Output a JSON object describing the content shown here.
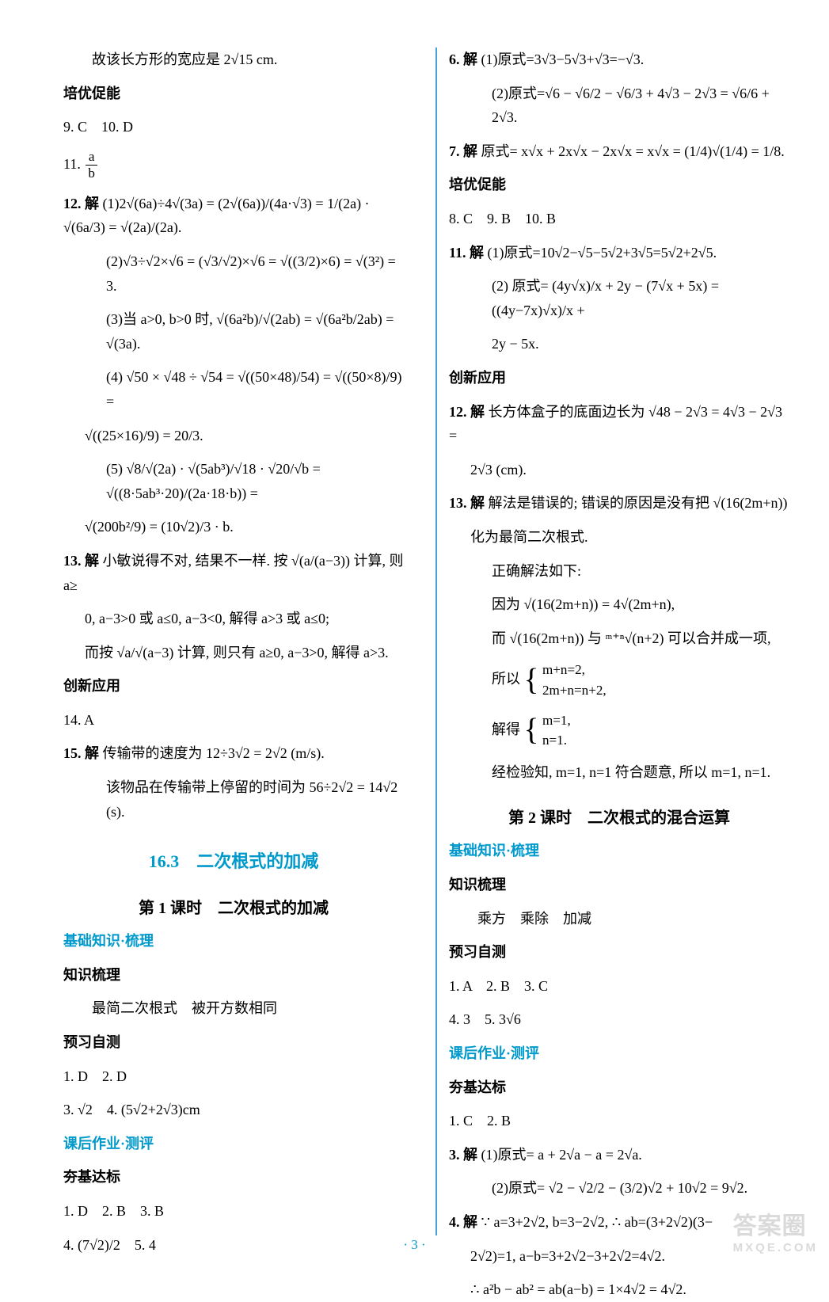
{
  "left": {
    "l0": "故该长方形的宽应是 2√15 cm.",
    "peiyou": "培优促能",
    "l9": "9. C　10. D",
    "l11_label": "11. ",
    "l11_frac_num": "a",
    "l11_frac_den": "b",
    "l12_label": "12. 解",
    "l12_1": "(1)2√(6a)÷4√(3a) = (2√(6a))/(4a·√3) = 1/(2a) · √(6a/3) = √(2a)/(2a).",
    "l12_2": "(2)√3÷√2×√6 = (√3/√2)×√6 = √((3/2)×6) = √(3²) = 3.",
    "l12_3": "(3)当 a>0, b>0 时, √(6a²b)/√(2ab) = √(6a²b/2ab) = √(3a).",
    "l12_4": "(4) √50 × √48 ÷ √54 = √((50×48)/54) = √((50×8)/9) =",
    "l12_4b": "√((25×16)/9) = 20/3.",
    "l12_5": "(5) √8/√(2a) · √(5ab³)/√18 · √20/√b = √((8·5ab³·20)/(2a·18·b)) =",
    "l12_5b": "√(200b²/9) = (10√2)/3 · b.",
    "l13_label": "13. 解",
    "l13_1": "小敏说得不对, 结果不一样. 按 √(a/(a−3)) 计算, 则 a≥",
    "l13_2": "0, a−3>0 或 a≤0, a−3<0, 解得 a>3 或 a≤0;",
    "l13_3": "而按 √a/√(a−3) 计算, 则只有 a≥0, a−3>0, 解得 a>3.",
    "chuangxin": "创新应用",
    "l14": "14. A",
    "l15_label": "15. 解",
    "l15_1": "传输带的速度为 12÷3√2 = 2√2 (m/s).",
    "l15_2": "该物品在传输带上停留的时间为 56÷2√2 = 14√2 (s).",
    "section_163": "16.3　二次根式的加减",
    "lesson1": "第 1 课时　二次根式的加减",
    "jichu": "基础知识·梳理",
    "zhishi": "知识梳理",
    "zhishi_text": "最简二次根式　被开方数相同",
    "yuxi": "预习自测",
    "y1": "1. D　2. D",
    "y3": "3. √2　4. (5√2+2√3)cm",
    "kehou": "课后作业·测评",
    "hangji": "夯基达标",
    "h1": "1. D　2. B　3. B",
    "h4": "4. (7√2)/2　5. 4"
  },
  "right": {
    "l6_label": "6. 解",
    "l6_1": "(1)原式=3√3−5√3+√3=−√3.",
    "l6_2": "(2)原式=√6 − √6/2 − √6/3 + 4√3 − 2√3 = √6/6 + 2√3.",
    "l7_label": "7. 解",
    "l7_1": "原式= x√x + 2x√x − 2x√x = x√x = (1/4)√(1/4) = 1/8.",
    "peiyou": "培优促能",
    "l8": "8. C　9. B　10. B",
    "l11_label": "11. 解",
    "l11_1": "(1)原式=10√2−√5−5√2+3√5=5√2+2√5.",
    "l11_2": "(2) 原式= (4y√x)/x + 2y − (7√x + 5x) = ((4y−7x)√x)/x +",
    "l11_2b": "2y − 5x.",
    "chuangxin": "创新应用",
    "l12_label": "12. 解",
    "l12_1": "长方体盒子的底面边长为 √48 − 2√3 = 4√3 − 2√3 =",
    "l12_1b": "2√3 (cm).",
    "l13_label": "13. 解",
    "l13_1": "解法是错误的; 错误的原因是没有把 √(16(2m+n))",
    "l13_1b": "化为最简二次根式.",
    "l13_2": "正确解法如下:",
    "l13_3": "因为 √(16(2m+n)) = 4√(2m+n),",
    "l13_4": "而 √(16(2m+n)) 与 ᵐ⁺ⁿ√(n+2) 可以合并成一项,",
    "l13_5_pre": "所以 ",
    "l13_5a": "m+n=2,",
    "l13_5b": "2m+n=n+2,",
    "l13_6_pre": "解得 ",
    "l13_6a": "m=1,",
    "l13_6b": "n=1.",
    "l13_7": "经检验知, m=1, n=1 符合题意, 所以 m=1, n=1.",
    "lesson2": "第 2 课时　二次根式的混合运算",
    "jichu": "基础知识·梳理",
    "zhishi": "知识梳理",
    "zhishi_text": "乘方　乘除　加减",
    "yuxi": "预习自测",
    "y1": "1. A　2. B　3. C",
    "y4": "4. 3　5. 3√6",
    "kehou": "课后作业·测评",
    "hangji": "夯基达标",
    "h1": "1. C　2. B",
    "h3_label": "3. 解",
    "h3_1": "(1)原式= a + 2√a − a = 2√a.",
    "h3_2": "(2)原式= √2 − √2/2 − (3/2)√2 + 10√2 = 9√2.",
    "h4_label": "4. 解",
    "h4_1": "∵ a=3+2√2, b=3−2√2, ∴ ab=(3+2√2)(3−",
    "h4_1b": "2√2)=1, a−b=3+2√2−3+2√2=4√2.",
    "h4_2": "∴ a²b − ab² = ab(a−b) = 1×4√2 = 4√2."
  },
  "pagenum": "· 3 ·",
  "watermark_main": "答案圈",
  "watermark_sub": "MXQE.COM"
}
